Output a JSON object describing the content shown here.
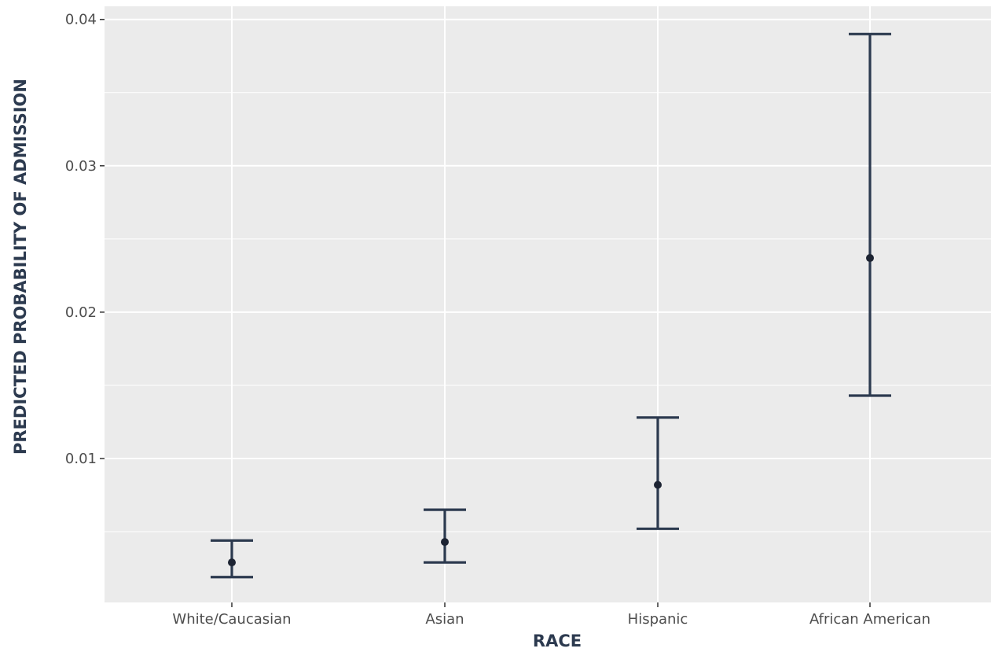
{
  "chart_data": {
    "type": "errorbar",
    "xlabel": "RACE",
    "ylabel": "PREDICTED PROBABILITY OF ADMISSION",
    "categories": [
      "White/Caucasian",
      "Asian",
      "Hispanic",
      "African American"
    ],
    "series": [
      {
        "estimate": [
          0.0029,
          0.0043,
          0.0082,
          0.0237
        ],
        "lower": [
          0.0019,
          0.0029,
          0.0052,
          0.0143
        ],
        "upper": [
          0.0044,
          0.0065,
          0.0128,
          0.039
        ]
      }
    ],
    "yticks": [
      0.01,
      0.02,
      0.03,
      0.04
    ],
    "ytick_labels": [
      "0.01",
      "0.02",
      "0.03",
      "0.04"
    ],
    "ylim": [
      0.0,
      0.0409
    ],
    "grid": true,
    "colors": {
      "panel": "#ebebeb",
      "grid": "#ffffff",
      "mark": "#2c3a4f",
      "point": "#1d2433",
      "tick_text": "#4d4d4d",
      "tick_mark": "#333333"
    }
  }
}
